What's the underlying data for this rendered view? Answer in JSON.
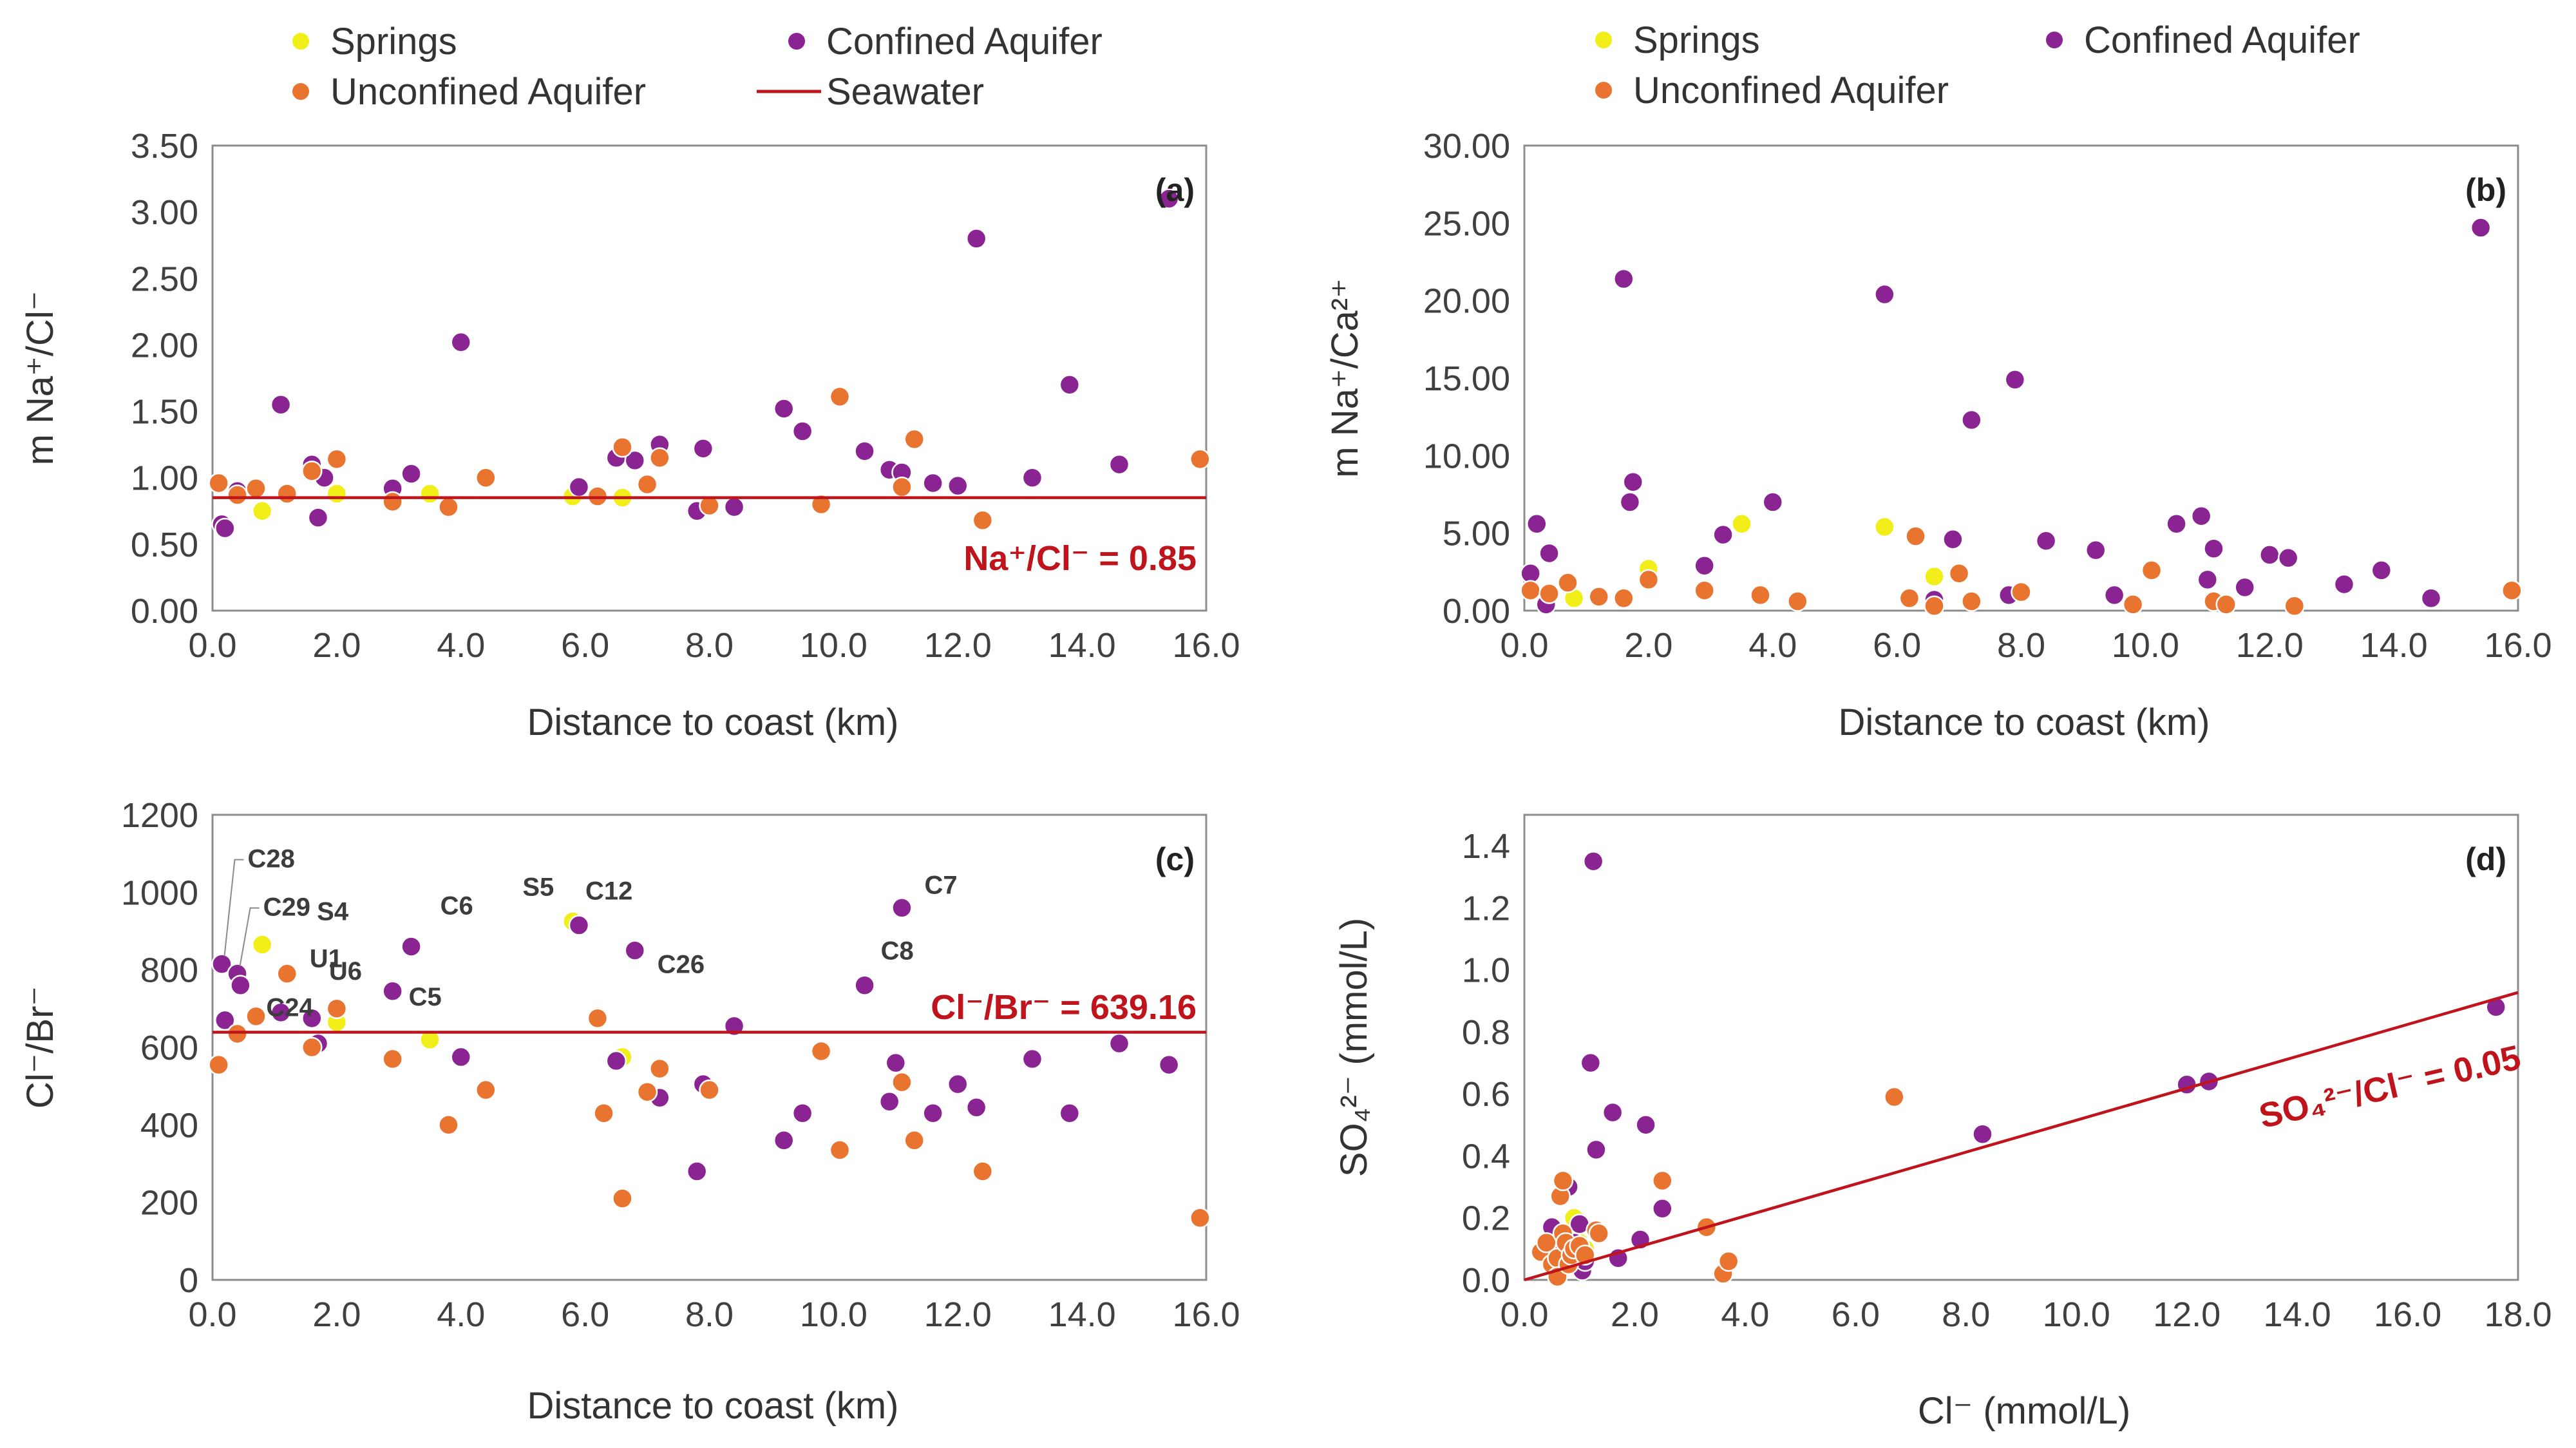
{
  "colors": {
    "springs": "#f2ee19",
    "confined": "#8b2493",
    "unconfined": "#e8742f",
    "seawater": "#c0141c"
  },
  "legend": {
    "springs": "Springs",
    "confined": "Confined Aquifer",
    "unconfined": "Unconfined Aquifer",
    "seawater": "Seawater"
  },
  "chart_data": [
    {
      "panel": "(a)",
      "type": "scatter",
      "xlabel": "Distance to coast (km)",
      "ylabel": "m Na⁺/Cl⁻",
      "xlim": [
        0,
        16
      ],
      "ylim": [
        0,
        3.5
      ],
      "xticks": [
        0,
        2,
        4,
        6,
        8,
        10,
        12,
        14,
        16
      ],
      "yticks": [
        0,
        0.5,
        1,
        1.5,
        2,
        2.5,
        3,
        3.5
      ],
      "xtick_decimals": 1,
      "ytick_decimals": 2,
      "grid": false,
      "legend_placement": "top",
      "reference_line": {
        "name": "Seawater",
        "slope": 0,
        "intercept": 0.85,
        "annotation": "Na⁺/Cl⁻ = 0.85"
      },
      "series": [
        {
          "name": "Springs",
          "color_key": "springs",
          "points": [
            [
              0.8,
              0.75
            ],
            [
              2.0,
              0.88
            ],
            [
              3.5,
              0.88
            ],
            [
              5.8,
              0.86
            ],
            [
              6.6,
              0.85
            ]
          ]
        },
        {
          "name": "Confined Aquifer",
          "color_key": "confined",
          "points": [
            [
              0.15,
              0.65
            ],
            [
              0.2,
              0.62
            ],
            [
              0.4,
              0.9
            ],
            [
              1.1,
              1.55
            ],
            [
              1.6,
              1.1
            ],
            [
              1.7,
              0.7
            ],
            [
              1.8,
              1.0
            ],
            [
              2.9,
              0.92
            ],
            [
              3.2,
              1.03
            ],
            [
              4.0,
              2.02
            ],
            [
              5.9,
              0.93
            ],
            [
              6.5,
              1.15
            ],
            [
              6.8,
              1.13
            ],
            [
              7.2,
              1.25
            ],
            [
              7.8,
              0.75
            ],
            [
              7.9,
              1.22
            ],
            [
              8.4,
              0.78
            ],
            [
              9.2,
              1.52
            ],
            [
              9.5,
              1.35
            ],
            [
              10.5,
              1.2
            ],
            [
              10.9,
              1.06
            ],
            [
              11.1,
              1.04
            ],
            [
              11.6,
              0.96
            ],
            [
              12.0,
              0.94
            ],
            [
              12.3,
              2.8
            ],
            [
              13.2,
              1.0
            ],
            [
              13.8,
              1.7
            ],
            [
              14.6,
              1.1
            ],
            [
              15.4,
              3.1
            ]
          ]
        },
        {
          "name": "Unconfined Aquifer",
          "color_key": "unconfined",
          "points": [
            [
              0.1,
              0.96
            ],
            [
              0.4,
              0.87
            ],
            [
              0.7,
              0.92
            ],
            [
              1.2,
              0.88
            ],
            [
              1.6,
              1.05
            ],
            [
              2.0,
              1.14
            ],
            [
              2.9,
              0.82
            ],
            [
              3.8,
              0.78
            ],
            [
              4.4,
              1.0
            ],
            [
              6.2,
              0.86
            ],
            [
              6.6,
              1.23
            ],
            [
              7.0,
              0.95
            ],
            [
              7.2,
              1.15
            ],
            [
              8.0,
              0.79
            ],
            [
              9.8,
              0.8
            ],
            [
              10.1,
              1.61
            ],
            [
              11.1,
              0.93
            ],
            [
              11.3,
              1.29
            ],
            [
              12.4,
              0.68
            ],
            [
              15.9,
              1.14
            ]
          ]
        }
      ]
    },
    {
      "panel": "(b)",
      "type": "scatter",
      "xlabel": "Distance to coast (km)",
      "ylabel": "m Na⁺/Ca²⁺",
      "xlim": [
        0,
        16
      ],
      "ylim": [
        0,
        30
      ],
      "xticks": [
        0,
        2,
        4,
        6,
        8,
        10,
        12,
        14,
        16
      ],
      "yticks": [
        0,
        5,
        10,
        15,
        20,
        25,
        30
      ],
      "xtick_decimals": 1,
      "ytick_decimals": 2,
      "grid": false,
      "legend_placement": "top",
      "series": [
        {
          "name": "Springs",
          "color_key": "springs",
          "points": [
            [
              0.8,
              0.8
            ],
            [
              2.0,
              2.7
            ],
            [
              3.5,
              5.6
            ],
            [
              5.8,
              5.4
            ],
            [
              6.6,
              2.2
            ]
          ]
        },
        {
          "name": "Confined Aquifer",
          "color_key": "confined",
          "points": [
            [
              0.1,
              2.4
            ],
            [
              0.2,
              5.6
            ],
            [
              0.4,
              3.7
            ],
            [
              0.35,
              0.4
            ],
            [
              1.6,
              21.4
            ],
            [
              1.7,
              7.0
            ],
            [
              1.75,
              8.3
            ],
            [
              2.9,
              2.9
            ],
            [
              3.2,
              4.9
            ],
            [
              4.0,
              7.0
            ],
            [
              5.8,
              20.4
            ],
            [
              6.6,
              0.7
            ],
            [
              6.9,
              4.6
            ],
            [
              7.2,
              12.3
            ],
            [
              7.8,
              1.0
            ],
            [
              7.9,
              14.9
            ],
            [
              8.4,
              4.5
            ],
            [
              9.2,
              3.9
            ],
            [
              9.5,
              1.0
            ],
            [
              10.5,
              5.6
            ],
            [
              10.9,
              6.1
            ],
            [
              11.0,
              2.0
            ],
            [
              11.1,
              4.0
            ],
            [
              11.6,
              1.5
            ],
            [
              12.0,
              3.6
            ],
            [
              12.3,
              3.4
            ],
            [
              13.2,
              1.7
            ],
            [
              13.8,
              2.6
            ],
            [
              14.6,
              0.8
            ],
            [
              15.4,
              24.7
            ]
          ]
        },
        {
          "name": "Unconfined Aquifer",
          "color_key": "unconfined",
          "points": [
            [
              0.1,
              1.3
            ],
            [
              0.4,
              1.1
            ],
            [
              0.7,
              1.8
            ],
            [
              1.2,
              0.9
            ],
            [
              1.6,
              0.8
            ],
            [
              2.0,
              2.0
            ],
            [
              2.9,
              1.3
            ],
            [
              3.8,
              1.0
            ],
            [
              4.4,
              0.6
            ],
            [
              6.2,
              0.8
            ],
            [
              6.3,
              4.8
            ],
            [
              6.6,
              0.3
            ],
            [
              7.0,
              2.4
            ],
            [
              7.2,
              0.6
            ],
            [
              8.0,
              1.2
            ],
            [
              9.8,
              0.4
            ],
            [
              10.1,
              2.6
            ],
            [
              11.1,
              0.6
            ],
            [
              11.3,
              0.4
            ],
            [
              12.4,
              0.3
            ],
            [
              15.9,
              1.3
            ]
          ]
        }
      ]
    },
    {
      "panel": "(c)",
      "type": "scatter",
      "xlabel": "Distance to coast (km)",
      "ylabel": "Cl⁻/Br⁻",
      "xlim": [
        0,
        16
      ],
      "ylim": [
        0,
        1200
      ],
      "xticks": [
        0,
        2,
        4,
        6,
        8,
        10,
        12,
        14,
        16
      ],
      "yticks": [
        0,
        200,
        400,
        600,
        800,
        1000,
        1200
      ],
      "xtick_decimals": 1,
      "ytick_decimals": 0,
      "grid": false,
      "reference_line": {
        "name": "Seawater",
        "slope": 0,
        "intercept": 639.16,
        "annotation": "Cl⁻/Br⁻ = 639.16"
      },
      "series": [
        {
          "name": "Springs",
          "color_key": "springs",
          "points": [
            [
              0.8,
              865
            ],
            [
              2.0,
              665
            ],
            [
              3.5,
              620
            ],
            [
              5.8,
              925
            ],
            [
              6.6,
              575
            ]
          ]
        },
        {
          "name": "Confined Aquifer",
          "color_key": "confined",
          "points": [
            [
              0.15,
              815
            ],
            [
              0.2,
              670
            ],
            [
              0.4,
              790
            ],
            [
              0.45,
              760
            ],
            [
              1.1,
              690
            ],
            [
              1.6,
              675
            ],
            [
              1.7,
              610
            ],
            [
              2.9,
              745
            ],
            [
              3.2,
              860
            ],
            [
              4.0,
              575
            ],
            [
              5.9,
              915
            ],
            [
              6.5,
              565
            ],
            [
              6.8,
              850
            ],
            [
              7.2,
              470
            ],
            [
              7.8,
              280
            ],
            [
              7.9,
              505
            ],
            [
              8.4,
              655
            ],
            [
              9.2,
              360
            ],
            [
              9.5,
              430
            ],
            [
              10.5,
              760
            ],
            [
              10.9,
              460
            ],
            [
              11.0,
              560
            ],
            [
              11.1,
              960
            ],
            [
              11.6,
              430
            ],
            [
              12.0,
              505
            ],
            [
              12.3,
              445
            ],
            [
              13.2,
              570
            ],
            [
              13.8,
              430
            ],
            [
              14.6,
              610
            ],
            [
              15.4,
              555
            ]
          ]
        },
        {
          "name": "Unconfined Aquifer",
          "color_key": "unconfined",
          "points": [
            [
              0.1,
              555
            ],
            [
              0.4,
              635
            ],
            [
              0.7,
              680
            ],
            [
              1.2,
              790
            ],
            [
              1.6,
              600
            ],
            [
              2.0,
              700
            ],
            [
              2.9,
              570
            ],
            [
              3.8,
              400
            ],
            [
              4.4,
              490
            ],
            [
              6.2,
              675
            ],
            [
              6.3,
              430
            ],
            [
              6.6,
              210
            ],
            [
              7.0,
              485
            ],
            [
              7.2,
              545
            ],
            [
              8.0,
              490
            ],
            [
              9.8,
              590
            ],
            [
              10.1,
              335
            ],
            [
              11.1,
              510
            ],
            [
              11.3,
              360
            ],
            [
              12.4,
              280
            ],
            [
              15.9,
              160
            ]
          ]
        }
      ],
      "point_labels": [
        {
          "text": "C28",
          "x": 0.15,
          "y": 815
        },
        {
          "text": "C29",
          "x": 0.4,
          "y": 790
        },
        {
          "text": "S4",
          "x": 0.8,
          "y": 865
        },
        {
          "text": "U1",
          "x": 1.2,
          "y": 790
        },
        {
          "text": "C24",
          "x": 0.45,
          "y": 760
        },
        {
          "text": "U6",
          "x": 2.0,
          "y": 700
        },
        {
          "text": "C6",
          "x": 3.2,
          "y": 860
        },
        {
          "text": "C5",
          "x": 2.9,
          "y": 745
        },
        {
          "text": "S5",
          "x": 5.8,
          "y": 925
        },
        {
          "text": "C12",
          "x": 5.9,
          "y": 915
        },
        {
          "text": "C26",
          "x": 6.8,
          "y": 850
        },
        {
          "text": "C7",
          "x": 11.1,
          "y": 960
        },
        {
          "text": "C8",
          "x": 10.5,
          "y": 760
        }
      ]
    },
    {
      "panel": "(d)",
      "type": "scatter",
      "xlabel": "Cl⁻ (mmol/L)",
      "ylabel": "SO₄²⁻ (mmol/L)",
      "xlim": [
        0,
        18
      ],
      "ylim": [
        0,
        1.5
      ],
      "xticks": [
        0,
        2,
        4,
        6,
        8,
        10,
        12,
        14,
        16,
        18
      ],
      "yticks": [
        0,
        0.2,
        0.4,
        0.6,
        0.8,
        1.0,
        1.2,
        1.4
      ],
      "xtick_decimals": 1,
      "ytick_decimals": 1,
      "grid": false,
      "reference_line": {
        "name": "Seawater",
        "slope": 0.0515,
        "intercept": 0,
        "annotation": "SO₄²⁻/Cl⁻ = 0.05"
      },
      "series": [
        {
          "name": "Springs",
          "color_key": "springs",
          "points": [
            [
              0.8,
              0.08
            ],
            [
              0.9,
              0.2
            ],
            [
              1.0,
              0.12
            ],
            [
              0.7,
              0.05
            ],
            [
              1.1,
              0.1
            ]
          ]
        },
        {
          "name": "Confined Aquifer",
          "color_key": "confined",
          "points": [
            [
              0.5,
              0.17
            ],
            [
              0.6,
              0.1
            ],
            [
              0.7,
              0.04
            ],
            [
              0.8,
              0.3
            ],
            [
              0.9,
              0.12
            ],
            [
              1.0,
              0.18
            ],
            [
              1.05,
              0.03
            ],
            [
              1.1,
              0.06
            ],
            [
              1.2,
              0.7
            ],
            [
              1.25,
              1.35
            ],
            [
              1.3,
              0.42
            ],
            [
              1.6,
              0.54
            ],
            [
              1.7,
              0.07
            ],
            [
              2.1,
              0.13
            ],
            [
              2.2,
              0.5
            ],
            [
              2.5,
              0.23
            ],
            [
              8.3,
              0.47
            ],
            [
              12.0,
              0.63
            ],
            [
              12.4,
              0.64
            ],
            [
              17.6,
              0.88
            ]
          ]
        },
        {
          "name": "Unconfined Aquifer",
          "color_key": "unconfined",
          "points": [
            [
              0.3,
              0.09
            ],
            [
              0.4,
              0.12
            ],
            [
              0.5,
              0.05
            ],
            [
              0.6,
              0.07
            ],
            [
              0.6,
              0.01
            ],
            [
              0.65,
              0.27
            ],
            [
              0.7,
              0.32
            ],
            [
              0.7,
              0.15
            ],
            [
              0.75,
              0.12
            ],
            [
              0.8,
              0.05
            ],
            [
              0.85,
              0.08
            ],
            [
              0.9,
              0.1
            ],
            [
              1.0,
              0.11
            ],
            [
              1.1,
              0.08
            ],
            [
              1.3,
              0.16
            ],
            [
              1.35,
              0.15
            ],
            [
              2.5,
              0.32
            ],
            [
              3.3,
              0.17
            ],
            [
              3.6,
              0.02
            ],
            [
              3.7,
              0.06
            ],
            [
              6.7,
              0.59
            ]
          ]
        }
      ]
    }
  ]
}
